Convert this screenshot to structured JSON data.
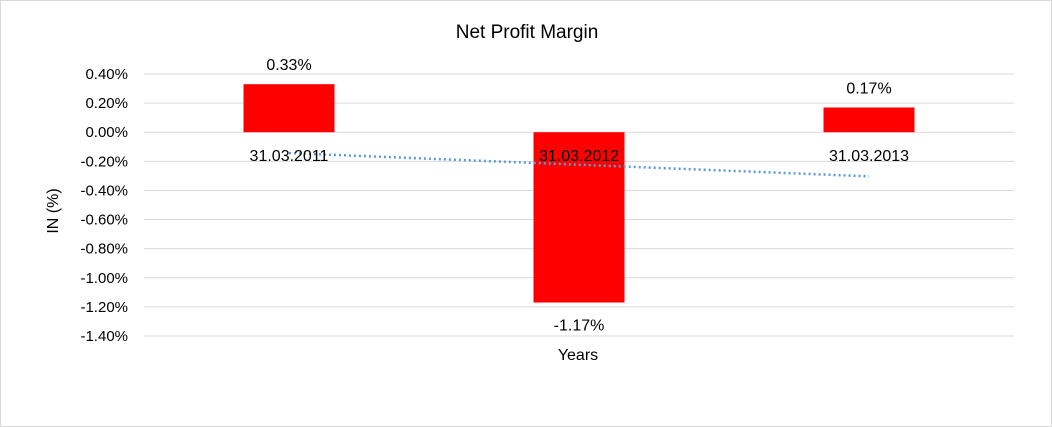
{
  "chart_data": {
    "type": "bar",
    "title": "Net Profit Margin",
    "xlabel": "Years",
    "ylabel": "IN (%)",
    "categories": [
      "31.03.2011",
      "31.03.2012",
      "31.03.2013"
    ],
    "values": [
      0.33,
      -1.17,
      0.17
    ],
    "data_labels": [
      "0.33%",
      "-1.17%",
      "0.17%"
    ],
    "ylim": [
      -1.4,
      0.4
    ],
    "ytick_step": 0.2,
    "ytick_labels": [
      "0.40%",
      "0.20%",
      "0.00%",
      "-0.20%",
      "-0.40%",
      "-0.60%",
      "-0.80%",
      "-1.00%",
      "-1.20%",
      "-1.40%"
    ],
    "bar_color": "#ff0000",
    "trendline": {
      "style": "dotted",
      "color": "#5b9bd5"
    },
    "grid": true,
    "legend": "none"
  }
}
